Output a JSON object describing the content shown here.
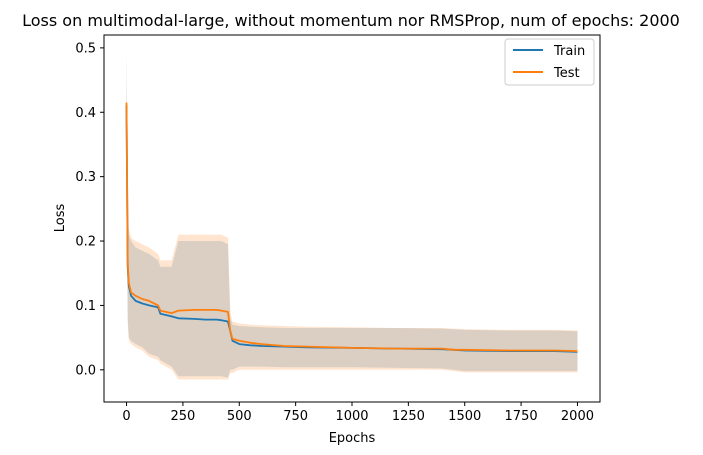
{
  "chart_data": {
    "type": "line",
    "title": "Loss on multimodal-large, without momentum nor RMSProp, num of epochs: 2000",
    "xlabel": "Epochs",
    "ylabel": "Loss",
    "xlim": [
      -100,
      2100
    ],
    "ylim": [
      -0.05,
      0.52
    ],
    "xticks": [
      0,
      250,
      500,
      750,
      1000,
      1250,
      1500,
      1750,
      2000
    ],
    "yticks": [
      0.0,
      0.1,
      0.2,
      0.3,
      0.4,
      0.5
    ],
    "xtick_labels": [
      "0",
      "250",
      "500",
      "750",
      "1000",
      "1250",
      "1500",
      "1750",
      "2000"
    ],
    "ytick_labels": [
      "0.0",
      "0.1",
      "0.2",
      "0.3",
      "0.4",
      "0.5"
    ],
    "grid": false,
    "legend": "top-right",
    "series": [
      {
        "name": "Train",
        "color": "#1f77b4",
        "x": [
          0,
          5,
          10,
          20,
          40,
          70,
          100,
          140,
          150,
          200,
          230,
          300,
          350,
          400,
          420,
          450,
          460,
          470,
          500,
          550,
          600,
          700,
          800,
          1000,
          1200,
          1400,
          1450,
          1500,
          1700,
          1900,
          2000
        ],
        "y": [
          0.41,
          0.16,
          0.13,
          0.115,
          0.107,
          0.103,
          0.1,
          0.097,
          0.087,
          0.083,
          0.08,
          0.079,
          0.078,
          0.078,
          0.077,
          0.075,
          0.06,
          0.045,
          0.04,
          0.038,
          0.037,
          0.036,
          0.035,
          0.034,
          0.033,
          0.032,
          0.031,
          0.03,
          0.029,
          0.029,
          0.028
        ],
        "band_upper": [
          0.5,
          0.25,
          0.21,
          0.2,
          0.19,
          0.185,
          0.18,
          0.17,
          0.16,
          0.16,
          0.2,
          0.2,
          0.2,
          0.2,
          0.2,
          0.195,
          0.08,
          0.07,
          0.068,
          0.067,
          0.066,
          0.065,
          0.065,
          0.065,
          0.065,
          0.064,
          0.063,
          0.062,
          0.061,
          0.061,
          0.06
        ],
        "band_lower": [
          0.3,
          0.08,
          0.05,
          0.045,
          0.04,
          0.035,
          0.025,
          0.02,
          0.015,
          0.005,
          -0.01,
          -0.01,
          -0.01,
          -0.01,
          -0.01,
          -0.012,
          0.0,
          0.0,
          0.005,
          0.005,
          0.005,
          0.004,
          0.004,
          0.004,
          0.003,
          0.002,
          0.0,
          -0.002,
          -0.002,
          -0.002,
          -0.002
        ]
      },
      {
        "name": "Test",
        "color": "#ff7f0e",
        "x": [
          0,
          5,
          10,
          20,
          40,
          70,
          100,
          140,
          150,
          200,
          230,
          300,
          350,
          400,
          420,
          450,
          460,
          470,
          500,
          550,
          600,
          700,
          800,
          1000,
          1200,
          1400,
          1450,
          1500,
          1700,
          1900,
          2000
        ],
        "y": [
          0.415,
          0.165,
          0.135,
          0.12,
          0.115,
          0.11,
          0.107,
          0.1,
          0.092,
          0.088,
          0.092,
          0.093,
          0.093,
          0.093,
          0.092,
          0.09,
          0.06,
          0.048,
          0.045,
          0.042,
          0.04,
          0.037,
          0.036,
          0.034,
          0.033,
          0.033,
          0.031,
          0.031,
          0.03,
          0.03,
          0.029
        ],
        "band_upper": [
          0.5,
          0.26,
          0.22,
          0.205,
          0.2,
          0.195,
          0.19,
          0.18,
          0.17,
          0.17,
          0.21,
          0.21,
          0.21,
          0.21,
          0.21,
          0.205,
          0.09,
          0.075,
          0.072,
          0.07,
          0.069,
          0.068,
          0.067,
          0.066,
          0.065,
          0.065,
          0.064,
          0.063,
          0.062,
          0.062,
          0.061
        ],
        "band_lower": [
          0.3,
          0.075,
          0.045,
          0.04,
          0.035,
          0.03,
          0.02,
          0.015,
          0.01,
          0.0,
          -0.015,
          -0.015,
          -0.015,
          -0.015,
          -0.015,
          -0.015,
          -0.005,
          -0.005,
          0.0,
          0.0,
          0.0,
          0.0,
          0.0,
          0.0,
          0.0,
          0.0,
          -0.002,
          -0.004,
          -0.004,
          -0.004,
          -0.004
        ]
      }
    ]
  }
}
